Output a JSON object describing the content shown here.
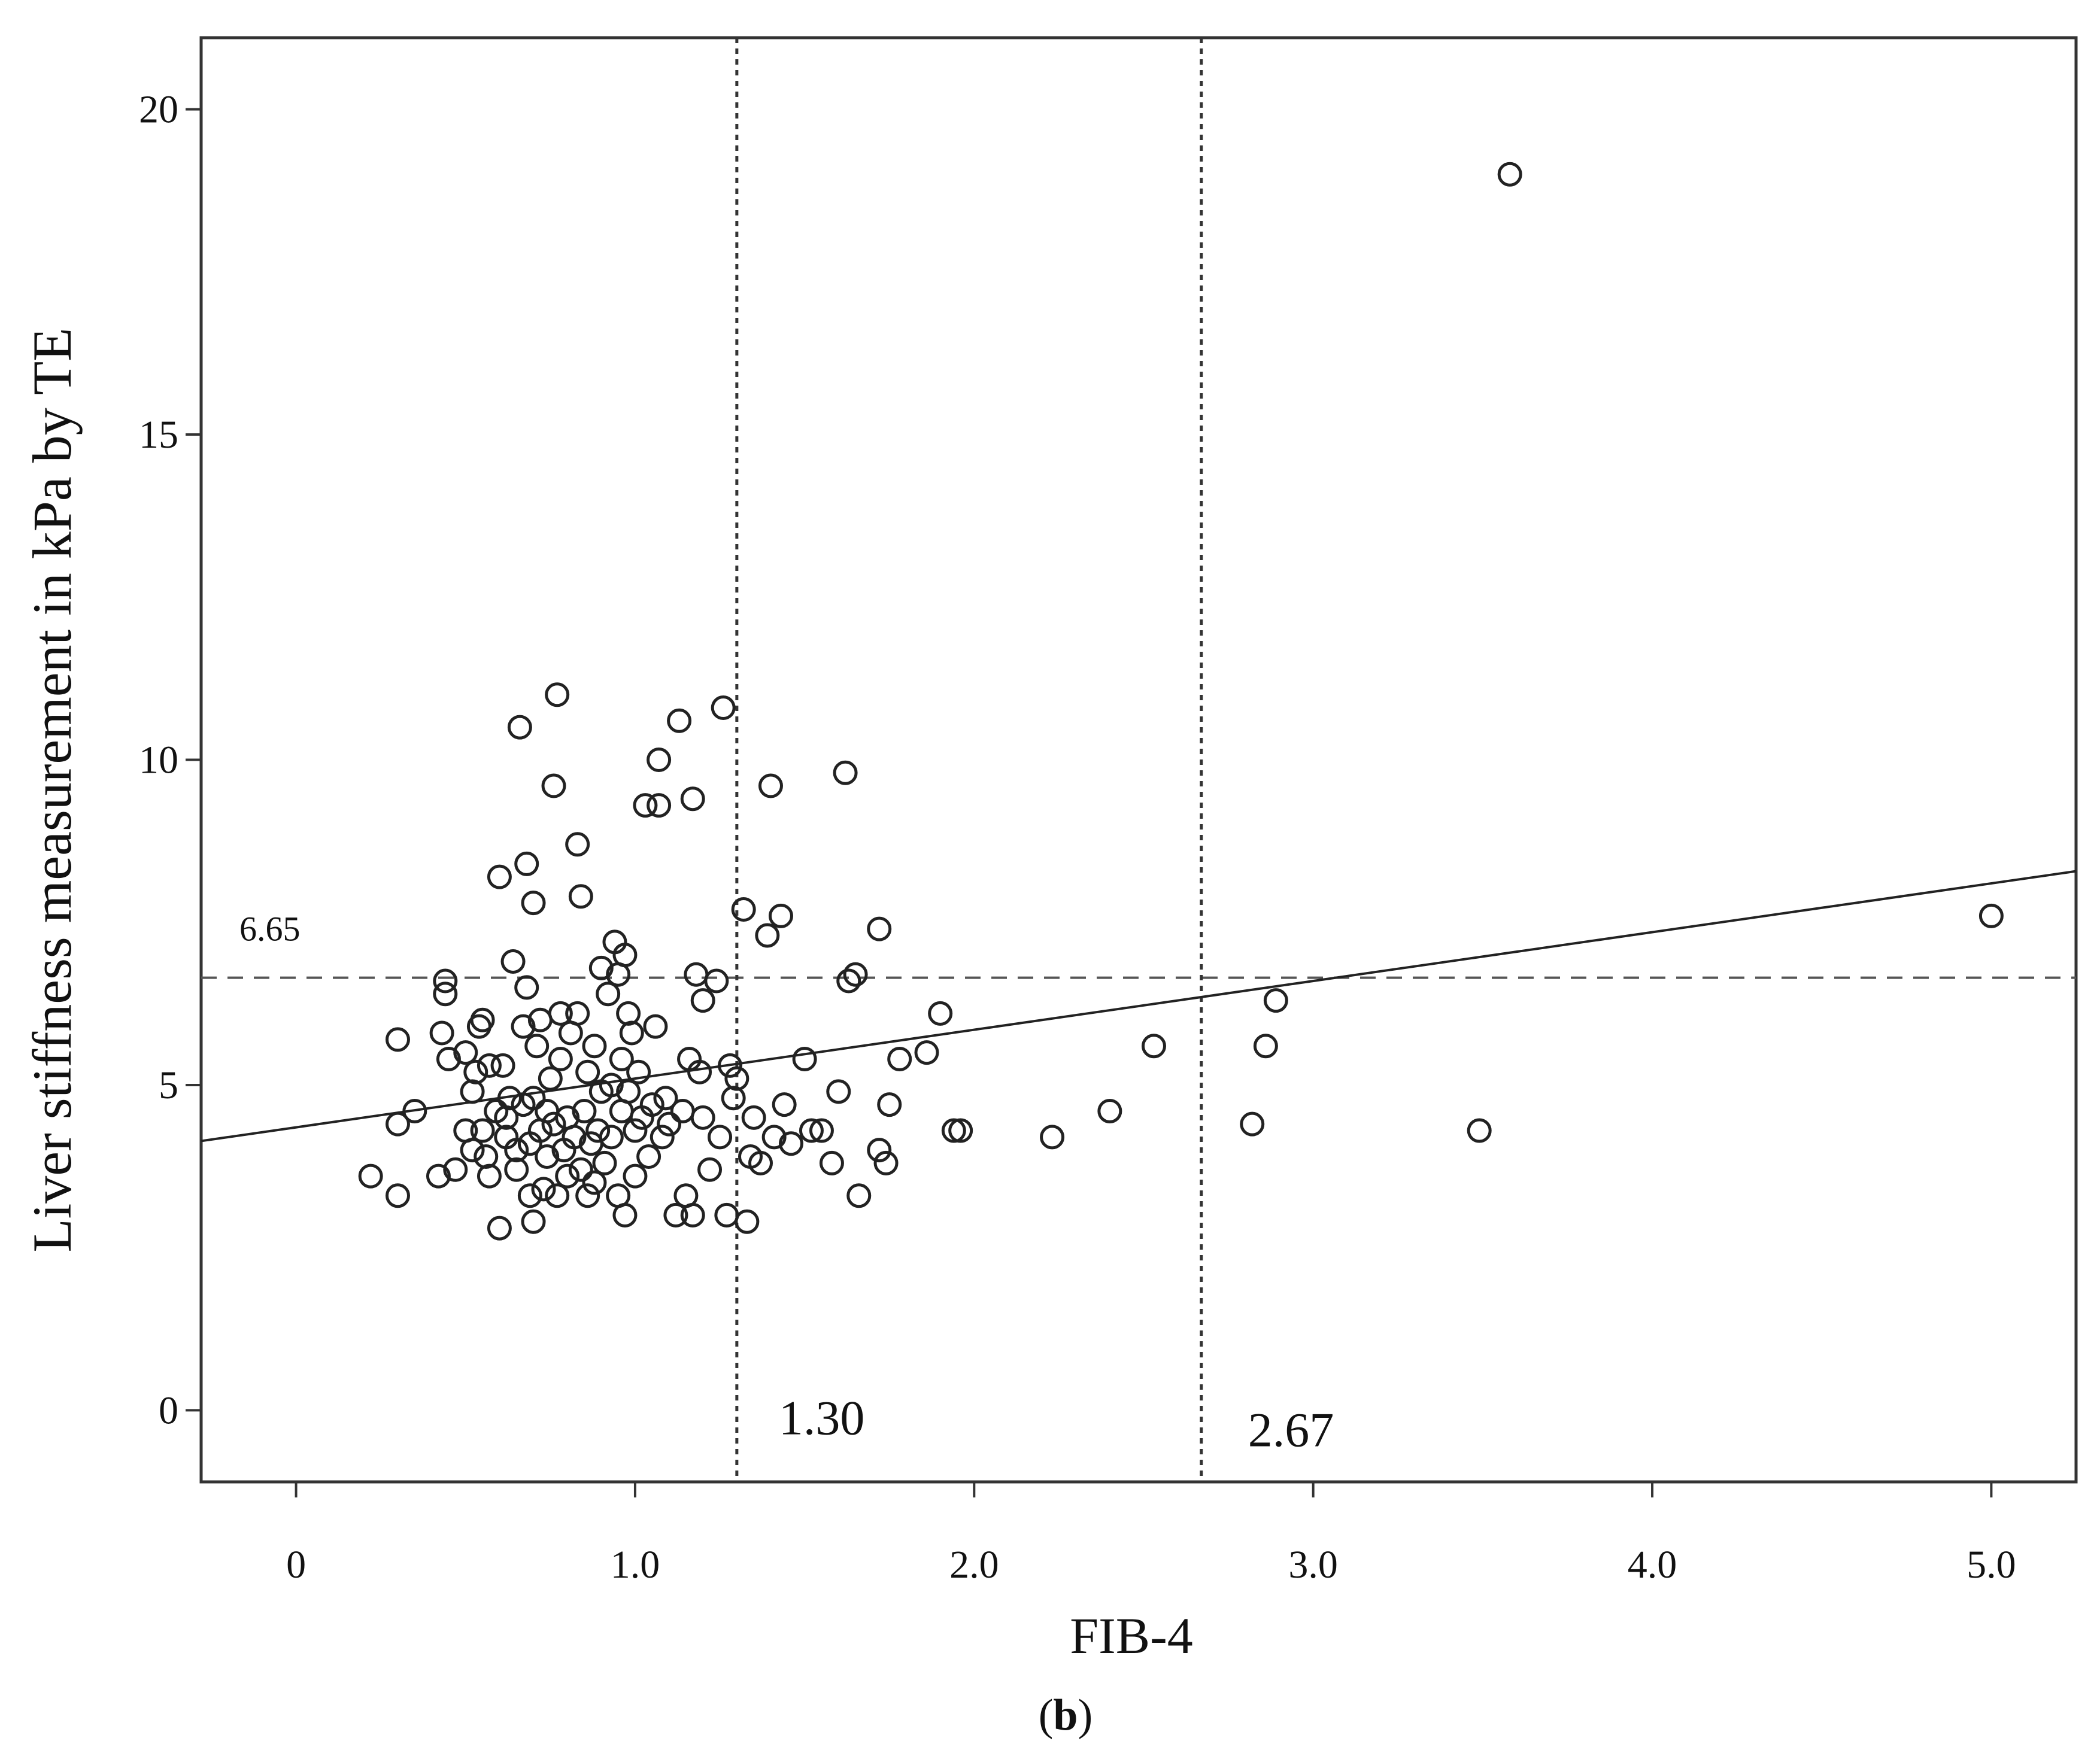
{
  "chart_data": {
    "type": "scatter",
    "panel_label_open": "(",
    "panel_label_letter": "b",
    "panel_label_close": ")",
    "xlabel": "FIB-4",
    "ylabel": "Liver stiffness measurement in kPa by TE",
    "xlim": [
      -0.28,
      5.25
    ],
    "ylim": [
      -1.1,
      21.1
    ],
    "x_ticks": [
      {
        "value": 0,
        "label": "0"
      },
      {
        "value": 1.0,
        "label": "1.0"
      },
      {
        "value": 2.0,
        "label": "2.0"
      },
      {
        "value": 3.0,
        "label": "3.0"
      },
      {
        "value": 4.0,
        "label": "4.0"
      },
      {
        "value": 5.0,
        "label": "5.0"
      }
    ],
    "y_ticks": [
      {
        "value": 0,
        "label": "0"
      },
      {
        "value": 5,
        "label": "5"
      },
      {
        "value": 10,
        "label": "10"
      },
      {
        "value": 15,
        "label": "15"
      },
      {
        "value": 20,
        "label": "20"
      }
    ],
    "reference_lines": [
      {
        "orientation": "horizontal",
        "value": 6.65,
        "label": "6.65",
        "style": "dashed"
      },
      {
        "orientation": "vertical",
        "value": 1.3,
        "label": "1.30",
        "style": "dotted"
      },
      {
        "orientation": "vertical",
        "value": 2.67,
        "label": "2.67",
        "style": "dotted"
      }
    ],
    "regression_line": {
      "intercept": 4.35,
      "slope": 0.75
    },
    "grid": false,
    "legend": "none",
    "colors": {
      "marker": "#222222",
      "axis": "#333333",
      "lines": "#444444"
    },
    "points": [
      [
        0.22,
        3.6
      ],
      [
        0.3,
        3.3
      ],
      [
        0.3,
        5.7
      ],
      [
        0.3,
        4.4
      ],
      [
        0.35,
        4.6
      ],
      [
        0.42,
        3.6
      ],
      [
        0.43,
        5.8
      ],
      [
        0.44,
        6.4
      ],
      [
        0.44,
        6.6
      ],
      [
        0.45,
        5.4
      ],
      [
        0.47,
        3.7
      ],
      [
        0.5,
        5.5
      ],
      [
        0.5,
        4.3
      ],
      [
        0.52,
        4.9
      ],
      [
        0.52,
        4.0
      ],
      [
        0.53,
        5.2
      ],
      [
        0.54,
        5.9
      ],
      [
        0.55,
        4.3
      ],
      [
        0.55,
        6.0
      ],
      [
        0.56,
        3.9
      ],
      [
        0.57,
        3.6
      ],
      [
        0.57,
        5.3
      ],
      [
        0.59,
        4.6
      ],
      [
        0.6,
        8.2
      ],
      [
        0.6,
        2.8
      ],
      [
        0.61,
        5.3
      ],
      [
        0.62,
        4.5
      ],
      [
        0.62,
        4.2
      ],
      [
        0.63,
        4.8
      ],
      [
        0.64,
        6.9
      ],
      [
        0.65,
        4.0
      ],
      [
        0.65,
        3.7
      ],
      [
        0.66,
        10.5
      ],
      [
        0.67,
        5.9
      ],
      [
        0.67,
        4.7
      ],
      [
        0.68,
        6.5
      ],
      [
        0.68,
        8.4
      ],
      [
        0.69,
        4.1
      ],
      [
        0.69,
        3.3
      ],
      [
        0.7,
        7.8
      ],
      [
        0.7,
        2.9
      ],
      [
        0.7,
        4.8
      ],
      [
        0.71,
        5.6
      ],
      [
        0.72,
        6.0
      ],
      [
        0.72,
        4.3
      ],
      [
        0.73,
        3.4
      ],
      [
        0.74,
        4.6
      ],
      [
        0.74,
        3.9
      ],
      [
        0.75,
        5.1
      ],
      [
        0.76,
        9.6
      ],
      [
        0.76,
        4.4
      ],
      [
        0.77,
        11.0
      ],
      [
        0.77,
        3.3
      ],
      [
        0.78,
        5.4
      ],
      [
        0.78,
        6.1
      ],
      [
        0.79,
        4.0
      ],
      [
        0.8,
        4.5
      ],
      [
        0.8,
        3.6
      ],
      [
        0.81,
        5.8
      ],
      [
        0.82,
        4.2
      ],
      [
        0.83,
        6.1
      ],
      [
        0.83,
        8.7
      ],
      [
        0.84,
        7.9
      ],
      [
        0.84,
        3.7
      ],
      [
        0.85,
        4.6
      ],
      [
        0.86,
        5.2
      ],
      [
        0.86,
        3.3
      ],
      [
        0.87,
        4.1
      ],
      [
        0.88,
        5.6
      ],
      [
        0.88,
        3.5
      ],
      [
        0.89,
        4.3
      ],
      [
        0.9,
        6.8
      ],
      [
        0.9,
        4.9
      ],
      [
        0.91,
        3.8
      ],
      [
        0.92,
        6.4
      ],
      [
        0.93,
        5.0
      ],
      [
        0.93,
        4.2
      ],
      [
        0.94,
        7.2
      ],
      [
        0.95,
        6.7
      ],
      [
        0.95,
        3.3
      ],
      [
        0.96,
        5.4
      ],
      [
        0.96,
        4.6
      ],
      [
        0.97,
        7.0
      ],
      [
        0.97,
        3.0
      ],
      [
        0.98,
        6.1
      ],
      [
        0.98,
        4.9
      ],
      [
        0.99,
        5.8
      ],
      [
        1.0,
        4.3
      ],
      [
        1.0,
        3.6
      ],
      [
        1.01,
        5.2
      ],
      [
        1.02,
        4.5
      ],
      [
        1.03,
        9.3
      ],
      [
        1.04,
        3.9
      ],
      [
        1.05,
        4.7
      ],
      [
        1.06,
        5.9
      ],
      [
        1.07,
        9.3
      ],
      [
        1.07,
        10.0
      ],
      [
        1.08,
        4.2
      ],
      [
        1.09,
        4.8
      ],
      [
        1.1,
        4.4
      ],
      [
        1.12,
        3.0
      ],
      [
        1.13,
        10.6
      ],
      [
        1.14,
        4.6
      ],
      [
        1.15,
        3.3
      ],
      [
        1.16,
        5.4
      ],
      [
        1.17,
        9.4
      ],
      [
        1.17,
        3.0
      ],
      [
        1.18,
        6.7
      ],
      [
        1.19,
        5.2
      ],
      [
        1.2,
        4.5
      ],
      [
        1.2,
        6.3
      ],
      [
        1.22,
        3.7
      ],
      [
        1.24,
        6.6
      ],
      [
        1.25,
        4.2
      ],
      [
        1.26,
        10.8
      ],
      [
        1.27,
        3.0
      ],
      [
        1.28,
        5.3
      ],
      [
        1.29,
        4.8
      ],
      [
        1.3,
        5.1
      ],
      [
        1.32,
        7.7
      ],
      [
        1.33,
        2.9
      ],
      [
        1.34,
        3.9
      ],
      [
        1.35,
        4.5
      ],
      [
        1.37,
        3.8
      ],
      [
        1.39,
        7.3
      ],
      [
        1.4,
        9.6
      ],
      [
        1.41,
        4.2
      ],
      [
        1.43,
        7.6
      ],
      [
        1.44,
        4.7
      ],
      [
        1.46,
        4.1
      ],
      [
        1.5,
        5.4
      ],
      [
        1.52,
        4.3
      ],
      [
        1.55,
        4.3
      ],
      [
        1.58,
        3.8
      ],
      [
        1.6,
        4.9
      ],
      [
        1.62,
        9.8
      ],
      [
        1.63,
        6.6
      ],
      [
        1.65,
        6.7
      ],
      [
        1.66,
        3.3
      ],
      [
        1.72,
        7.4
      ],
      [
        1.72,
        4.0
      ],
      [
        1.74,
        3.8
      ],
      [
        1.75,
        4.7
      ],
      [
        1.78,
        5.4
      ],
      [
        1.86,
        5.5
      ],
      [
        1.9,
        6.1
      ],
      [
        1.94,
        4.3
      ],
      [
        1.96,
        4.3
      ],
      [
        2.23,
        4.2
      ],
      [
        2.4,
        4.6
      ],
      [
        2.53,
        5.6
      ],
      [
        2.82,
        4.4
      ],
      [
        2.86,
        5.6
      ],
      [
        2.89,
        6.3
      ],
      [
        3.49,
        4.3
      ],
      [
        3.58,
        19.0
      ],
      [
        5.0,
        7.6
      ]
    ]
  }
}
